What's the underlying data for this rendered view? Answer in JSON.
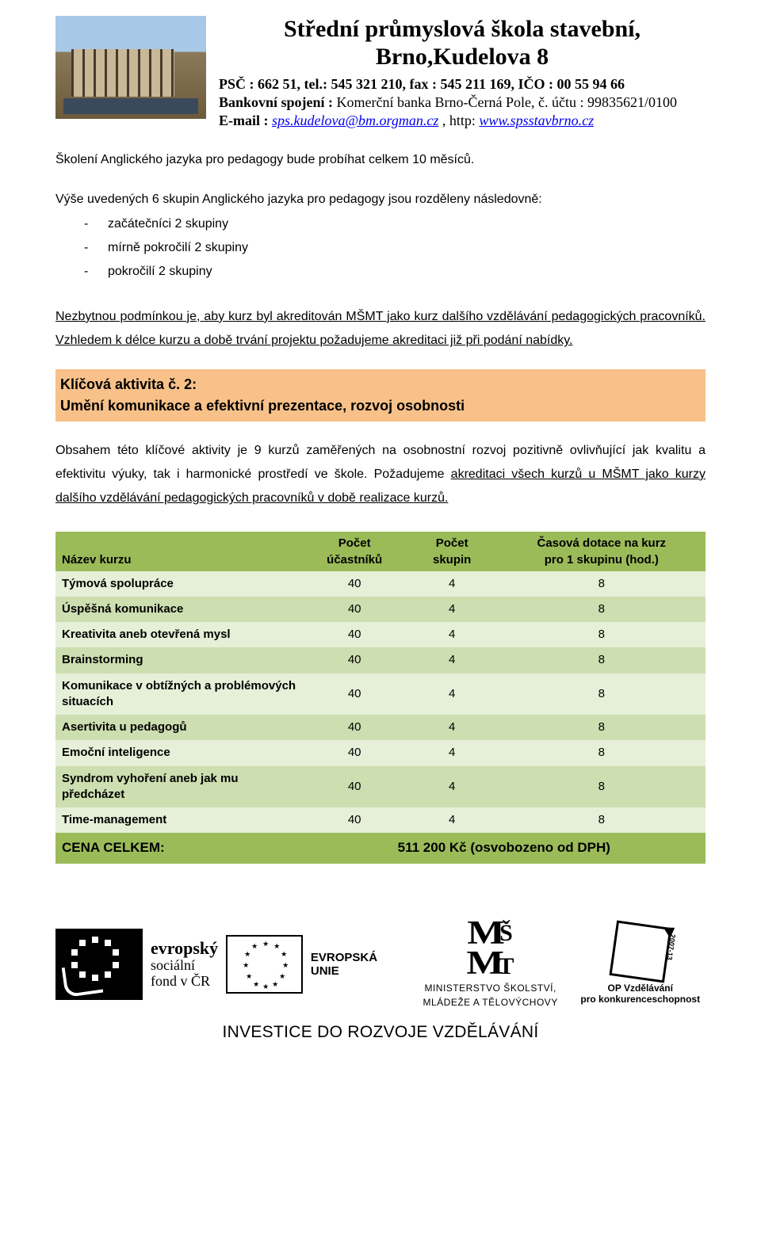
{
  "header": {
    "title_line1": "Střední průmyslová škola stavební,",
    "title_line2": "Brno,Kudelova 8",
    "contact_line": "PSČ : 662 51, tel.: 545 321 210,  fax : 545 211 169,  IČO : 00 55 94 66",
    "bank_label": "Bankovní spojení :",
    "bank_value": "  Komerční banka Brno-Černá Pole,  č. účtu :  99835621/0100",
    "email_label": "E-mail : ",
    "email": "sps.kudelova@bm.orgman.cz",
    "http_label": " , http: ",
    "website": "www.spsstavbrno.cz"
  },
  "intro": {
    "p1": "Školení Anglického jazyka pro pedagogy bude probíhat celkem 10 měsíců.",
    "p2": "Výše uvedených 6 skupin Anglického jazyka pro pedagogy jsou rozděleny následovně:",
    "bullets": [
      "začátečníci 2 skupiny",
      "mírně pokročilí 2 skupiny",
      "pokročilí 2 skupiny"
    ],
    "p3": "Nezbytnou podmínkou je, aby kurz byl akreditován MŠMT jako kurz dalšího vzdělávání pedagogických pracovníků. Vzhledem k délce kurzu a době trvání projektu požadujeme akreditaci již při podání nabídky."
  },
  "activity": {
    "line1": "Klíčová aktivita č. 2:",
    "line2": "Umění komunikace a efektivní prezentace, rozvoj osobnosti"
  },
  "desc": {
    "text_before": "Obsahem této klíčové aktivity je 9 kurzů zaměřených na osobnostní rozvoj pozitivně ovlivňující jak kvalitu a efektivitu výuky, tak i harmonické prostředí ve škole. Požadujeme ",
    "text_underline": "akreditaci všech kurzů u MŠMT jako kurzy dalšího vzdělávání pedagogických pracovníků v době realizace kurzů."
  },
  "table": {
    "headers": {
      "name": "Název kurzu",
      "participants_l1": "Počet",
      "participants_l2": "účastníků",
      "groups_l1": "Počet",
      "groups_l2": "skupin",
      "hours_l1": "Časová dotace na kurz",
      "hours_l2": "pro 1 skupinu (hod.)"
    },
    "rows": [
      {
        "name": "Týmová spolupráce",
        "p": "40",
        "g": "4",
        "h": "8"
      },
      {
        "name": "Úspěšná komunikace",
        "p": "40",
        "g": "4",
        "h": "8"
      },
      {
        "name": "Kreativita aneb otevřená mysl",
        "p": "40",
        "g": "4",
        "h": "8"
      },
      {
        "name": "Brainstorming",
        "p": "40",
        "g": "4",
        "h": "8"
      },
      {
        "name": "Komunikace v obtížných a problémových situacích",
        "p": "40",
        "g": "4",
        "h": "8"
      },
      {
        "name": "Asertivita u pedagogů",
        "p": "40",
        "g": "4",
        "h": "8"
      },
      {
        "name": "Emoční inteligence",
        "p": "40",
        "g": "4",
        "h": "8"
      },
      {
        "name": "Syndrom vyhoření aneb jak mu předcházet",
        "p": "40",
        "g": "4",
        "h": "8"
      },
      {
        "name": "Time-management",
        "p": "40",
        "g": "4",
        "h": "8"
      }
    ],
    "total_label": "CENA CELKEM:",
    "total_value": "511 200 Kč (osvobozeno od DPH)"
  },
  "footer": {
    "esf_l1": "evropský",
    "esf_l2": "sociální",
    "esf_l3": "fond v ČR",
    "eu_text": "EVROPSKÁ UNIE",
    "msmt_mark": "MŠMT",
    "msmt_l1": "MINISTERSTVO ŠKOLSTVÍ,",
    "msmt_l2": "MLÁDEŽE A TĚLOVÝCHOVY",
    "op_l1": "OP Vzdělávání",
    "op_l2": "pro konkurenceschopnost",
    "invest": "INVESTICE DO ROZVOJE VZDĚLÁVÁNÍ"
  },
  "colors": {
    "activity_bg": "#f7c189",
    "table_header": "#9bbb59",
    "row_odd": "#e6efd8",
    "row_even": "#cddeb0",
    "link": "#0000ee"
  }
}
